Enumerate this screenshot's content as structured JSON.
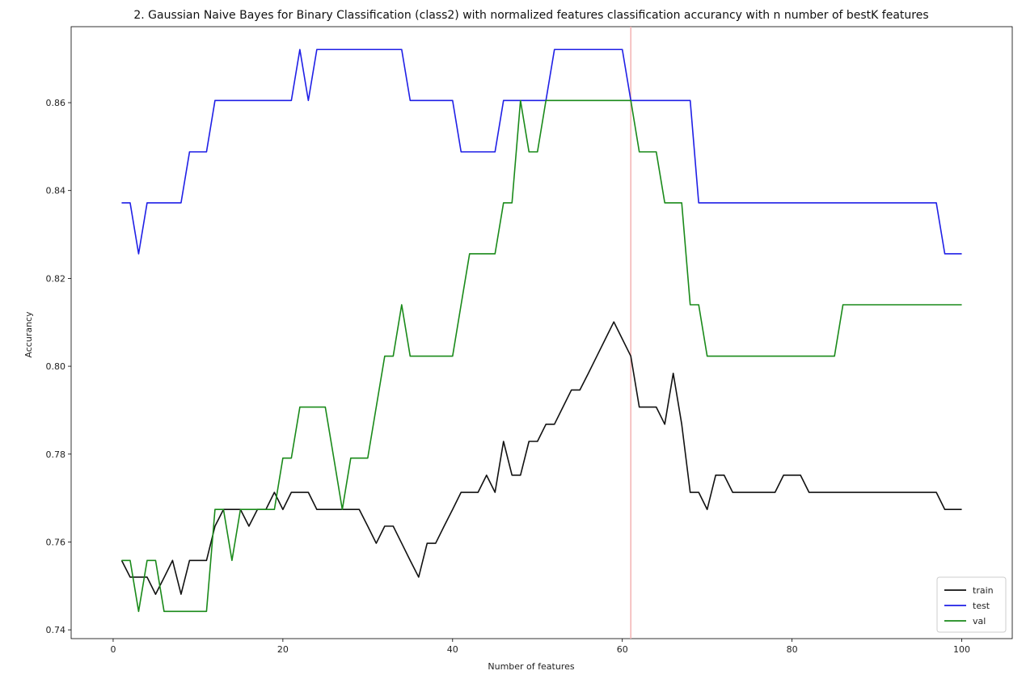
{
  "chart_data": {
    "type": "line",
    "title": "2. Gaussian Naive Bayes for Binary Classification (class2) with normalized features classification accurancy with n number of bestK features",
    "xlabel": "Number of features",
    "ylabel": "Accurancy",
    "xlim": [
      -4.95,
      105.95
    ],
    "ylim": [
      0.738,
      0.8773
    ],
    "xticks": [
      0,
      20,
      40,
      60,
      80,
      100
    ],
    "yticks": [
      0.74,
      0.76,
      0.78,
      0.8,
      0.82,
      0.84,
      0.86
    ],
    "ytick_labels": [
      "0.74",
      "0.76",
      "0.78",
      "0.80",
      "0.82",
      "0.84",
      "0.86"
    ],
    "grid": false,
    "legend_position": "lower-right",
    "vline": {
      "x": 61,
      "color": "#f4b6b6"
    },
    "x": [
      1,
      2,
      3,
      4,
      5,
      6,
      7,
      8,
      9,
      10,
      11,
      12,
      13,
      14,
      15,
      16,
      17,
      18,
      19,
      20,
      21,
      22,
      23,
      24,
      25,
      26,
      27,
      28,
      29,
      30,
      31,
      32,
      33,
      34,
      35,
      36,
      37,
      38,
      39,
      40,
      41,
      42,
      43,
      44,
      45,
      46,
      47,
      48,
      49,
      50,
      51,
      52,
      53,
      54,
      55,
      56,
      57,
      58,
      59,
      60,
      61,
      62,
      63,
      64,
      65,
      66,
      67,
      68,
      69,
      70,
      71,
      72,
      73,
      74,
      75,
      76,
      77,
      78,
      79,
      80,
      81,
      82,
      83,
      84,
      85,
      86,
      87,
      88,
      89,
      90,
      91,
      92,
      93,
      94,
      95,
      96,
      97,
      98,
      99,
      100
    ],
    "series": [
      {
        "name": "train",
        "color": "#111111",
        "values": [
          0.7558,
          0.752,
          0.752,
          0.752,
          0.7481,
          0.7519,
          0.7558,
          0.7481,
          0.7558,
          0.7558,
          0.7558,
          0.7636,
          0.7674,
          0.7674,
          0.7674,
          0.7636,
          0.7674,
          0.7674,
          0.7713,
          0.7674,
          0.7713,
          0.7713,
          0.7713,
          0.7674,
          0.7674,
          0.7674,
          0.7674,
          0.7674,
          0.7674,
          0.7636,
          0.7597,
          0.7636,
          0.7636,
          0.7597,
          0.7558,
          0.752,
          0.7597,
          0.7597,
          0.7636,
          0.7674,
          0.7713,
          0.7713,
          0.7713,
          0.7752,
          0.7713,
          0.7829,
          0.7752,
          0.7752,
          0.7829,
          0.7829,
          0.7868,
          0.7868,
          0.7907,
          0.7946,
          0.7946,
          0.7984,
          0.8023,
          0.8062,
          0.8101,
          0.8062,
          0.8023,
          0.7907,
          0.7907,
          0.7907,
          0.7868,
          0.7984,
          0.7868,
          0.7713,
          0.7713,
          0.7674,
          0.7752,
          0.7752,
          0.7713,
          0.7713,
          0.7713,
          0.7713,
          0.7713,
          0.7713,
          0.7752,
          0.7752,
          0.7752,
          0.7713,
          0.7713,
          0.7713,
          0.7713,
          0.7713,
          0.7713,
          0.7713,
          0.7713,
          0.7713,
          0.7713,
          0.7713,
          0.7713,
          0.7713,
          0.7713,
          0.7713,
          0.7713,
          0.7674,
          0.7674,
          0.7674
        ]
      },
      {
        "name": "test",
        "color": "#1f1fe6",
        "values": [
          0.8372,
          0.8372,
          0.8256,
          0.8372,
          0.8372,
          0.8372,
          0.8372,
          0.8372,
          0.8488,
          0.8488,
          0.8488,
          0.8605,
          0.8605,
          0.8605,
          0.8605,
          0.8605,
          0.8605,
          0.8605,
          0.8605,
          0.8605,
          0.8605,
          0.8721,
          0.8605,
          0.8721,
          0.8721,
          0.8721,
          0.8721,
          0.8721,
          0.8721,
          0.8721,
          0.8721,
          0.8721,
          0.8721,
          0.8721,
          0.8605,
          0.8605,
          0.8605,
          0.8605,
          0.8605,
          0.8605,
          0.8488,
          0.8488,
          0.8488,
          0.8488,
          0.8488,
          0.8605,
          0.8605,
          0.8605,
          0.8605,
          0.8605,
          0.8605,
          0.8721,
          0.8721,
          0.8721,
          0.8721,
          0.8721,
          0.8721,
          0.8721,
          0.8721,
          0.8721,
          0.8605,
          0.8605,
          0.8605,
          0.8605,
          0.8605,
          0.8605,
          0.8605,
          0.8605,
          0.8372,
          0.8372,
          0.8372,
          0.8372,
          0.8372,
          0.8372,
          0.8372,
          0.8372,
          0.8372,
          0.8372,
          0.8372,
          0.8372,
          0.8372,
          0.8372,
          0.8372,
          0.8372,
          0.8372,
          0.8372,
          0.8372,
          0.8372,
          0.8372,
          0.8372,
          0.8372,
          0.8372,
          0.8372,
          0.8372,
          0.8372,
          0.8372,
          0.8372,
          0.8256,
          0.8256,
          0.8256
        ]
      },
      {
        "name": "val",
        "color": "#1a8a1a",
        "values": [
          0.7558,
          0.7558,
          0.7442,
          0.7558,
          0.7558,
          0.7442,
          0.7442,
          0.7442,
          0.7442,
          0.7442,
          0.7442,
          0.7674,
          0.7674,
          0.7558,
          0.7674,
          0.7674,
          0.7674,
          0.7674,
          0.7674,
          0.7791,
          0.7791,
          0.7907,
          0.7907,
          0.7907,
          0.7907,
          0.7791,
          0.7674,
          0.7791,
          0.7791,
          0.7791,
          0.7907,
          0.8023,
          0.8023,
          0.814,
          0.8023,
          0.8023,
          0.8023,
          0.8023,
          0.8023,
          0.8023,
          0.814,
          0.8256,
          0.8256,
          0.8256,
          0.8256,
          0.8372,
          0.8372,
          0.8605,
          0.8488,
          0.8488,
          0.8605,
          0.8605,
          0.8605,
          0.8605,
          0.8605,
          0.8605,
          0.8605,
          0.8605,
          0.8605,
          0.8605,
          0.8605,
          0.8488,
          0.8488,
          0.8488,
          0.8372,
          0.8372,
          0.8372,
          0.814,
          0.814,
          0.8023,
          0.8023,
          0.8023,
          0.8023,
          0.8023,
          0.8023,
          0.8023,
          0.8023,
          0.8023,
          0.8023,
          0.8023,
          0.8023,
          0.8023,
          0.8023,
          0.8023,
          0.8023,
          0.814,
          0.814,
          0.814,
          0.814,
          0.814,
          0.814,
          0.814,
          0.814,
          0.814,
          0.814,
          0.814,
          0.814,
          0.814,
          0.814,
          0.814
        ]
      }
    ]
  }
}
